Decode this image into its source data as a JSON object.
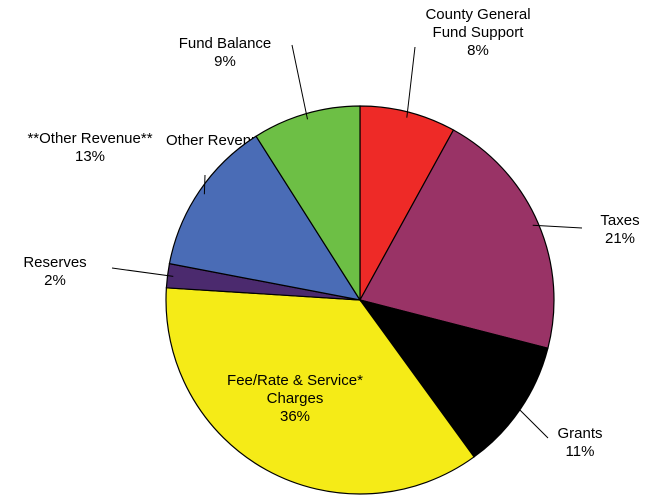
{
  "chart_data": {
    "type": "pie",
    "categories": [
      "County General Fund Support",
      "Taxes",
      "Grants",
      "Fee/Rate & Service* Charges",
      "Reserves",
      "**Other Revenue**",
      "Fund Balance"
    ],
    "values": [
      8,
      21,
      11,
      36,
      2,
      13,
      9
    ],
    "value_labels": [
      "8%",
      "21%",
      "11%",
      "36%",
      "2%",
      "13%",
      "9%"
    ],
    "colors": [
      "#ee2a27",
      "#993366",
      "#000000",
      "#f5eb17",
      "#4b2a6e",
      "#4a6cb6",
      "#6dbf45"
    ],
    "annotations": [
      "Other Revenue"
    ]
  }
}
